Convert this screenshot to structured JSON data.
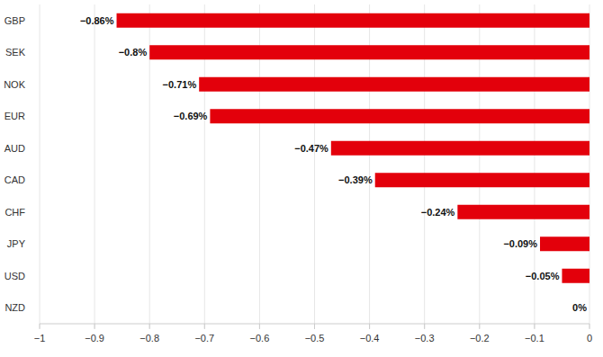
{
  "chart_data": {
    "type": "bar",
    "orientation": "horizontal",
    "categories": [
      "GBP",
      "SEK",
      "NOK",
      "EUR",
      "AUD",
      "CAD",
      "CHF",
      "JPY",
      "USD",
      "NZD"
    ],
    "values": [
      -0.86,
      -0.8,
      -0.71,
      -0.69,
      -0.47,
      -0.39,
      -0.24,
      -0.09,
      -0.05,
      0
    ],
    "value_labels": [
      "−0.86%",
      "−0.8%",
      "−0.71%",
      "−0.69%",
      "−0.47%",
      "−0.39%",
      "−0.24%",
      "−0.09%",
      "−0.05%",
      "0%"
    ],
    "color": "#e3000b",
    "xlim": [
      -1,
      0
    ],
    "xticks": [
      {
        "value": -1,
        "label": "−1"
      },
      {
        "value": -0.9,
        "label": "−0.9"
      },
      {
        "value": -0.8,
        "label": "−0.8"
      },
      {
        "value": -0.7,
        "label": "−0.7"
      },
      {
        "value": -0.6,
        "label": "−0.6"
      },
      {
        "value": -0.5,
        "label": "−0.5"
      },
      {
        "value": -0.4,
        "label": "−0.4"
      },
      {
        "value": -0.3,
        "label": "−0.3"
      },
      {
        "value": -0.2,
        "label": "−0.2"
      },
      {
        "value": -0.1,
        "label": "−0.1"
      },
      0
    ],
    "grid": true,
    "data_labels": true
  }
}
